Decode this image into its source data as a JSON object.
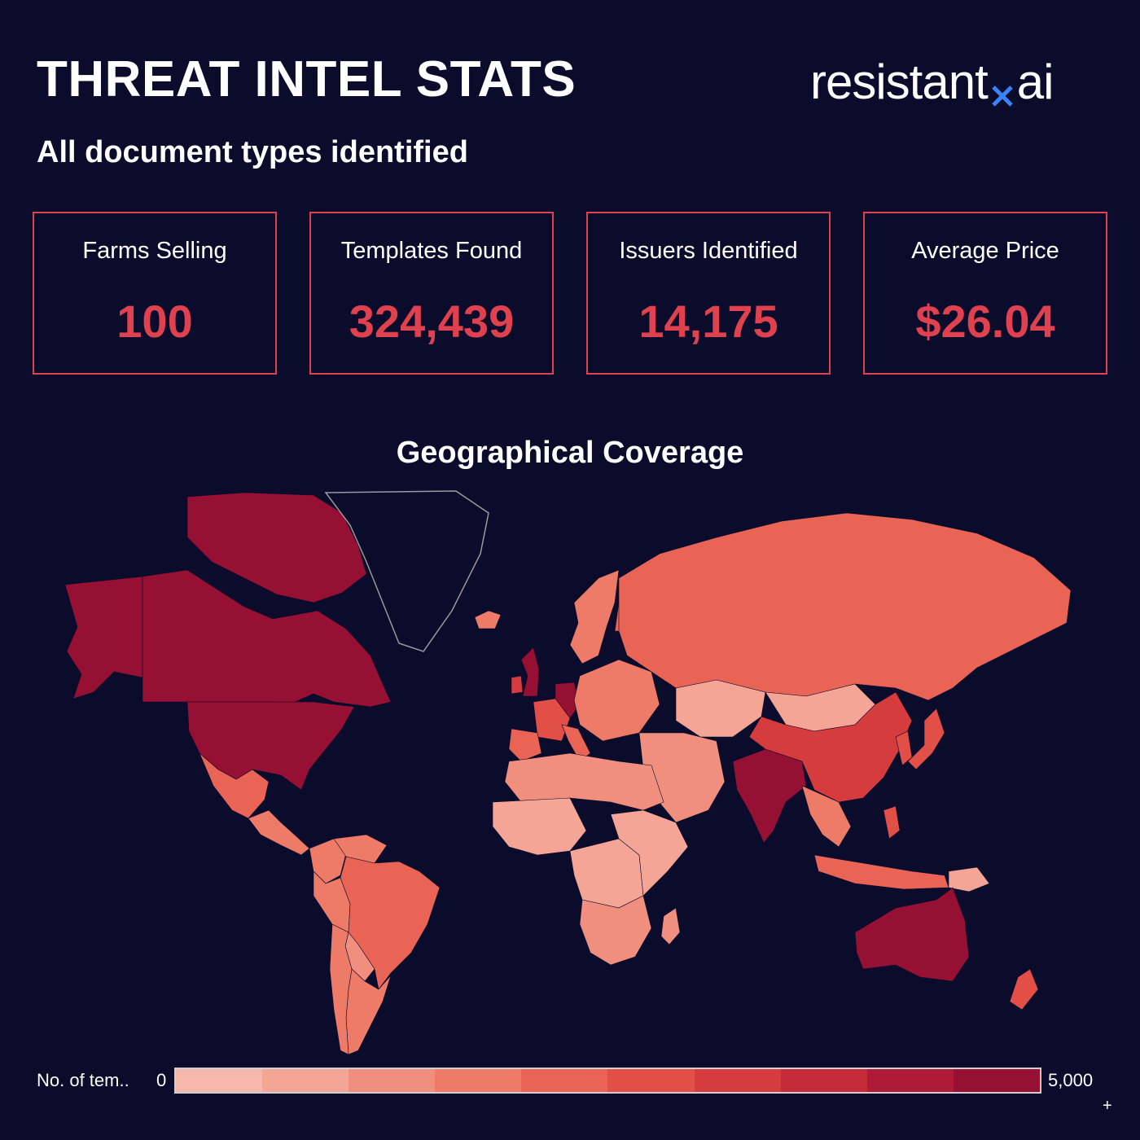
{
  "header": {
    "title": "THREAT INTEL STATS",
    "subtitle": "All document types identified",
    "logo_left": "resistant",
    "logo_right": "ai"
  },
  "kpis": [
    {
      "label": "Farms Selling",
      "value": "100"
    },
    {
      "label": "Templates Found",
      "value": "324,439"
    },
    {
      "label": "Issuers Identified",
      "value": "14,175"
    },
    {
      "label": "Average Price",
      "value": "$26.04"
    }
  ],
  "colors": {
    "accent": "#e0414f",
    "background": "#0b0b2c",
    "logo_x": "#3b82f6",
    "scale": [
      "#f6b8ab",
      "#f4a595",
      "#f18f7e",
      "#ee7b68",
      "#e96455",
      "#e24f46",
      "#d63b3d",
      "#c42a38",
      "#ad1b36",
      "#951033"
    ]
  },
  "chart_data": {
    "type": "choropleth",
    "title": "Geographical Coverage",
    "metric": "No. of templates",
    "legend_label": "No. of tem..",
    "range": [
      0,
      5000
    ],
    "legend_min_label": "0",
    "legend_max_label": "5,000",
    "legend_more_label": "+",
    "regions": [
      {
        "name": "Alaska",
        "value": 5000
      },
      {
        "name": "Canada",
        "value": 4700
      },
      {
        "name": "Canadian Arctic Archipelago",
        "value": 4700
      },
      {
        "name": "Greenland",
        "value": 0
      },
      {
        "name": "United States",
        "value": 5000
      },
      {
        "name": "Mexico",
        "value": 2300
      },
      {
        "name": "Central America",
        "value": 1900
      },
      {
        "name": "Colombia",
        "value": 1800
      },
      {
        "name": "Venezuela",
        "value": 1600
      },
      {
        "name": "Peru",
        "value": 1500
      },
      {
        "name": "Brazil",
        "value": 2000
      },
      {
        "name": "Bolivia",
        "value": 1100
      },
      {
        "name": "Argentina",
        "value": 1900
      },
      {
        "name": "Chile",
        "value": 1700
      },
      {
        "name": "Iceland",
        "value": 1500
      },
      {
        "name": "United Kingdom",
        "value": 4800
      },
      {
        "name": "Ireland",
        "value": 3000
      },
      {
        "name": "Scandinavia",
        "value": 1900
      },
      {
        "name": "Finland",
        "value": 2000
      },
      {
        "name": "Germany",
        "value": 4700
      },
      {
        "name": "France",
        "value": 2600
      },
      {
        "name": "Spain",
        "value": 2400
      },
      {
        "name": "Italy",
        "value": 2200
      },
      {
        "name": "Eastern Europe",
        "value": 1800
      },
      {
        "name": "Russia",
        "value": 2200
      },
      {
        "name": "Kazakhstan",
        "value": 900
      },
      {
        "name": "Middle East",
        "value": 1200
      },
      {
        "name": "North Africa",
        "value": 1100
      },
      {
        "name": "West Africa",
        "value": 500
      },
      {
        "name": "Central Africa",
        "value": 600
      },
      {
        "name": "East Africa",
        "value": 900
      },
      {
        "name": "Southern Africa",
        "value": 1400
      },
      {
        "name": "Madagascar",
        "value": 1000
      },
      {
        "name": "India",
        "value": 4800
      },
      {
        "name": "Mongolia",
        "value": 700
      },
      {
        "name": "China",
        "value": 3400
      },
      {
        "name": "Korea",
        "value": 2800
      },
      {
        "name": "Japan",
        "value": 2600
      },
      {
        "name": "Southeast Asia",
        "value": 1800
      },
      {
        "name": "Philippines",
        "value": 2600
      },
      {
        "name": "Indonesia",
        "value": 2000
      },
      {
        "name": "Papua New Guinea",
        "value": 900
      },
      {
        "name": "Australia",
        "value": 5000
      },
      {
        "name": "New Zealand",
        "value": 2700
      }
    ]
  }
}
